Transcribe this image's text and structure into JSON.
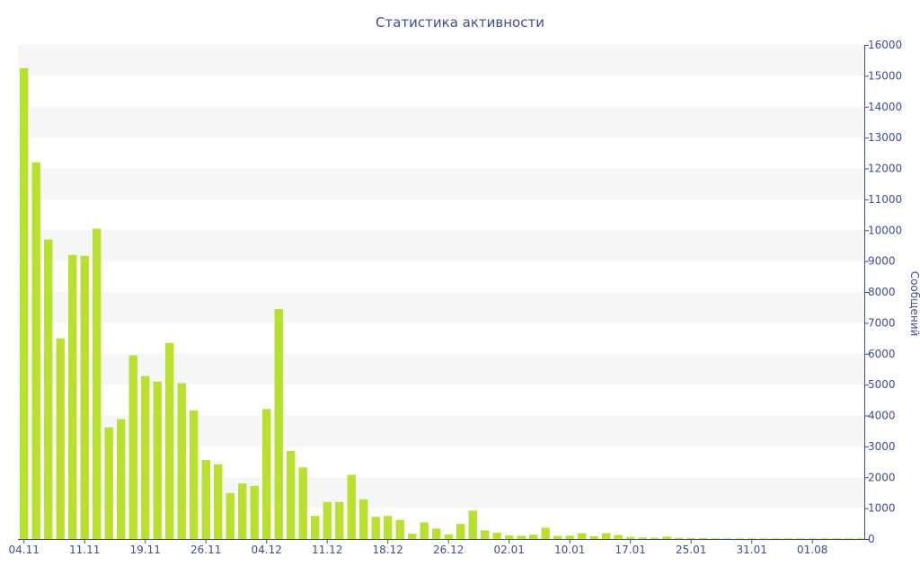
{
  "chart_data": {
    "type": "bar",
    "title": "Статистика активности",
    "xlabel": "",
    "ylabel": "Сообщений",
    "ylim": [
      0,
      16000
    ],
    "yticks": [
      0,
      1000,
      2000,
      3000,
      4000,
      5000,
      6000,
      7000,
      8000,
      9000,
      10000,
      11000,
      12000,
      13000,
      14000,
      15000,
      16000
    ],
    "y_axis_side": "right",
    "grid": "alternating-bands",
    "bar_color": "#b8e02e",
    "text_color": "#3d4f8f",
    "x_tick_labels": [
      {
        "index": 0,
        "label": "04.11"
      },
      {
        "index": 5,
        "label": "11.11"
      },
      {
        "index": 10,
        "label": "19.11"
      },
      {
        "index": 15,
        "label": "26.11"
      },
      {
        "index": 20,
        "label": "04.12"
      },
      {
        "index": 25,
        "label": "11.12"
      },
      {
        "index": 30,
        "label": "18.12"
      },
      {
        "index": 35,
        "label": "26.12"
      },
      {
        "index": 40,
        "label": "02.01"
      },
      {
        "index": 45,
        "label": "10.01"
      },
      {
        "index": 50,
        "label": "17.01"
      },
      {
        "index": 55,
        "label": "25.01"
      },
      {
        "index": 60,
        "label": "31.01"
      },
      {
        "index": 65,
        "label": "01.08"
      }
    ],
    "values": [
      15250,
      12200,
      9700,
      6500,
      9200,
      9170,
      10050,
      3620,
      3880,
      5950,
      5280,
      5100,
      6350,
      5050,
      4170,
      2560,
      2420,
      1490,
      1800,
      1720,
      4210,
      7450,
      2850,
      2320,
      750,
      1200,
      1200,
      2080,
      1290,
      720,
      750,
      620,
      170,
      540,
      340,
      150,
      490,
      920,
      280,
      210,
      120,
      110,
      140,
      370,
      100,
      110,
      190,
      90,
      190,
      130,
      70,
      50,
      40,
      80,
      40,
      30,
      30,
      20,
      20,
      20,
      20,
      20,
      20,
      20,
      20,
      20,
      20,
      20,
      20,
      20
    ]
  }
}
